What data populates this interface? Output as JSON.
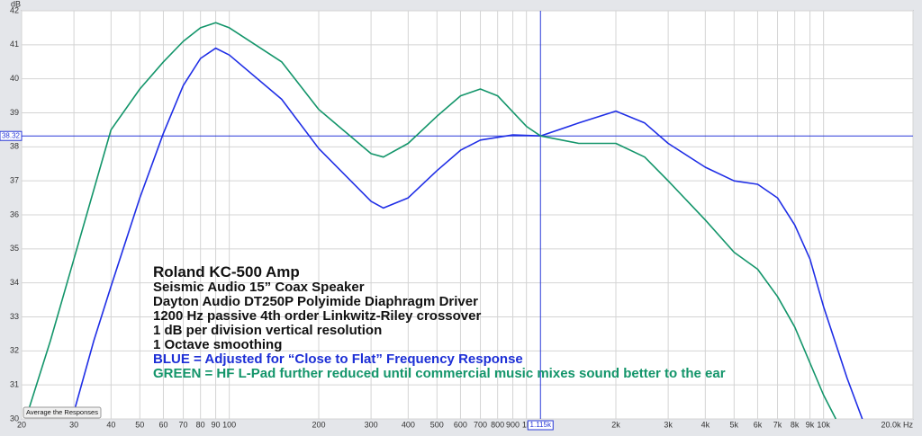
{
  "chart_data": {
    "type": "line",
    "y_unit": "dB",
    "xlim": [
      20,
      20000
    ],
    "ylim": [
      30,
      42
    ],
    "log_x": true,
    "grid": true,
    "yticks": [
      30,
      31,
      32,
      33,
      34,
      35,
      36,
      37,
      38,
      39,
      40,
      41,
      42
    ],
    "xticks": [
      20,
      30,
      40,
      50,
      60,
      70,
      80,
      90,
      100,
      200,
      300,
      400,
      500,
      600,
      700,
      800,
      900,
      {
        "value": 1000,
        "label": "1k"
      },
      {
        "value": 2000,
        "label": "2k"
      },
      {
        "value": 3000,
        "label": "3k"
      },
      {
        "value": 4000,
        "label": "4k"
      },
      {
        "value": 5000,
        "label": "5k"
      },
      {
        "value": 6000,
        "label": "6k"
      },
      {
        "value": 7000,
        "label": "7k"
      },
      {
        "value": 8000,
        "label": "8k"
      },
      {
        "value": 9000,
        "label": "9k"
      },
      {
        "value": 10000,
        "label": "10k"
      },
      {
        "value": 20000,
        "label": "20.0k Hz"
      }
    ],
    "cursor": {
      "x": {
        "value": 1115,
        "label": "1.115k"
      },
      "y": 38.32
    },
    "button": "Average the Responses",
    "annotations": [
      {
        "text": "Roland KC-500 Amp",
        "color": "#111111"
      },
      {
        "text": "Seismic Audio 15” Coax Speaker",
        "color": "#111111"
      },
      {
        "text": "Dayton Audio DT250P Polyimide Diaphragm Driver",
        "color": "#111111"
      },
      {
        "text": "1200 Hz passive 4th order Linkwitz-Riley crossover",
        "color": "#111111"
      },
      {
        "text": "1 dB per division vertical resolution",
        "color": "#111111"
      },
      {
        "text": "1 Octave smoothing",
        "color": "#111111"
      },
      {
        "text": "BLUE = Adjusted for “Close to Flat” Frequency Response",
        "color": "#1d2fd6"
      },
      {
        "text": "GREEN = HF L-Pad further reduced until commercial music mixes sound better to the ear",
        "color": "#13956a"
      }
    ],
    "series": [
      {
        "color": "#1f2ee6",
        "x": [
          30,
          35,
          40,
          50,
          60,
          70,
          80,
          90,
          100,
          150,
          200,
          300,
          330,
          400,
          500,
          600,
          700,
          900,
          1115,
          1500,
          2000,
          2500,
          3000,
          4000,
          5000,
          6000,
          7000,
          8000,
          9000,
          10000,
          12000,
          13500
        ],
        "values": [
          30.2,
          32.3,
          33.9,
          36.5,
          38.4,
          39.8,
          40.6,
          40.9,
          40.7,
          39.4,
          37.95,
          36.4,
          36.2,
          36.5,
          37.3,
          37.9,
          38.2,
          38.35,
          38.32,
          38.7,
          39.05,
          38.7,
          38.1,
          37.4,
          37.0,
          36.9,
          36.5,
          35.7,
          34.7,
          33.3,
          31.2,
          30
        ]
      },
      {
        "color": "#13956a",
        "x": [
          21,
          25,
          30,
          40,
          50,
          60,
          70,
          80,
          90,
          100,
          150,
          200,
          300,
          330,
          400,
          500,
          600,
          700,
          800,
          1000,
          1115,
          1500,
          2000,
          2500,
          3000,
          4000,
          5000,
          6000,
          7000,
          8000,
          10000,
          11000
        ],
        "values": [
          30.2,
          32.3,
          34.7,
          38.5,
          39.7,
          40.5,
          41.1,
          41.5,
          41.65,
          41.5,
          40.5,
          39.1,
          37.8,
          37.7,
          38.1,
          38.9,
          39.5,
          39.7,
          39.5,
          38.6,
          38.32,
          38.1,
          38.1,
          37.7,
          37.0,
          35.85,
          34.9,
          34.4,
          33.6,
          32.7,
          30.7,
          30
        ]
      }
    ]
  }
}
